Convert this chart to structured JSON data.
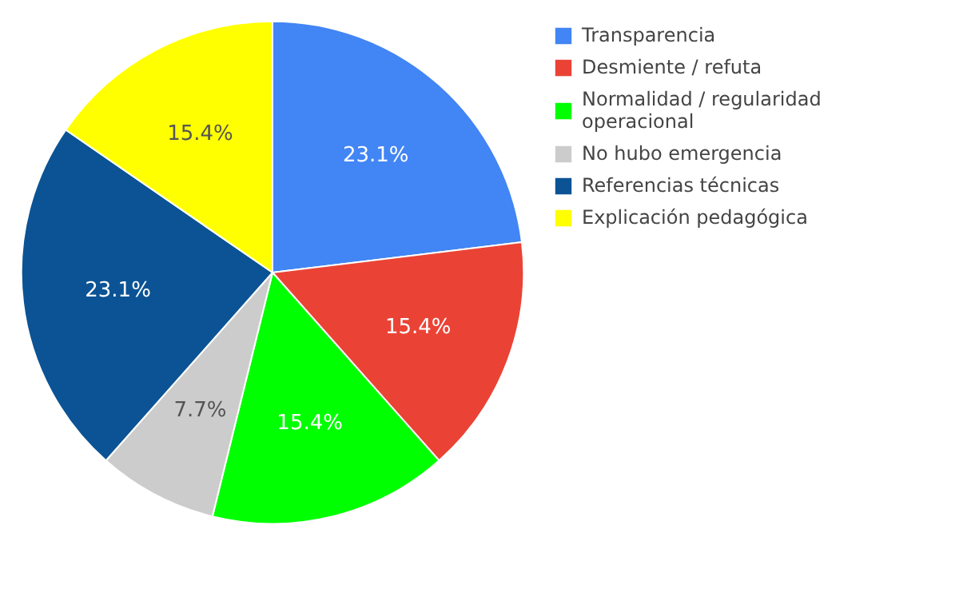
{
  "chart_data": {
    "type": "pie",
    "categories": [
      "Transparencia",
      "Desmiente / refuta",
      "Normalidad / regularidad operacional",
      "No hubo emergencia",
      "Referencias técnicas",
      "Explicación pedagógica"
    ],
    "values": [
      23.1,
      15.4,
      15.4,
      7.7,
      23.1,
      15.4
    ],
    "value_labels": [
      "23.1%",
      "15.4%",
      "15.4%",
      "7.7%",
      "23.1%",
      "15.4%"
    ],
    "colors": [
      "#4285f4",
      "#ea4335",
      "#00ff00",
      "#cccccc",
      "#0b5394",
      "#ffff00"
    ],
    "legend": "top right"
  }
}
